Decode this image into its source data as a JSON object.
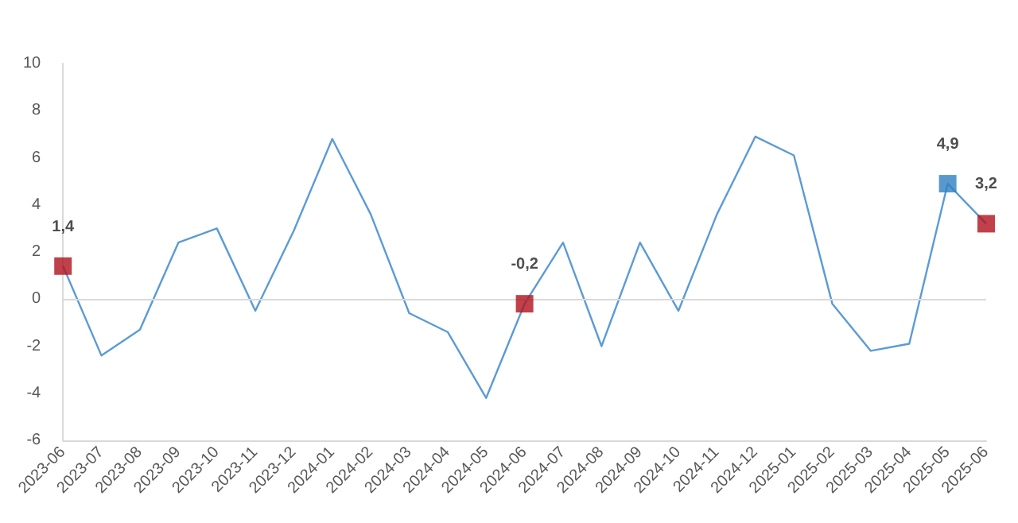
{
  "chart_data": {
    "type": "line",
    "categories": [
      "2023-06",
      "2023-07",
      "2023-08",
      "2023-09",
      "2023-10",
      "2023-11",
      "2023-12",
      "2024-01",
      "2024-02",
      "2024-03",
      "2024-04",
      "2024-05",
      "2024-06",
      "2024-07",
      "2024-08",
      "2024-09",
      "2024-10",
      "2024-11",
      "2024-12",
      "2025-01",
      "2025-02",
      "2025-03",
      "2025-04",
      "2025-05",
      "2025-06"
    ],
    "series": [
      {
        "color": "#5b9bd5",
        "marker": "none",
        "values": [
          1.4,
          -2.4,
          -1.3,
          2.4,
          3.0,
          -0.5,
          2.9,
          6.8,
          3.6,
          -0.6,
          -1.4,
          -4.2,
          -0.2,
          2.4,
          -2.0,
          2.4,
          -0.5,
          3.6,
          6.9,
          6.1,
          -0.2,
          -2.2,
          -1.9,
          4.9,
          3.2
        ]
      },
      {
        "type": "scatter",
        "marker": "square",
        "values": [
          1.4,
          null,
          null,
          null,
          null,
          null,
          null,
          null,
          null,
          null,
          null,
          null,
          -0.2,
          null,
          null,
          null,
          null,
          null,
          null,
          null,
          null,
          null,
          null,
          4.9,
          3.2
        ],
        "colors": [
          "#b0121b",
          null,
          null,
          null,
          null,
          null,
          null,
          null,
          null,
          null,
          null,
          null,
          "#b0121b",
          null,
          null,
          null,
          null,
          null,
          null,
          null,
          null,
          null,
          null,
          "#2e7fc0",
          "#b0121b"
        ],
        "value_labels": [
          "1,4",
          null,
          null,
          null,
          null,
          null,
          null,
          null,
          null,
          null,
          null,
          null,
          "-0,2",
          null,
          null,
          null,
          null,
          null,
          null,
          null,
          null,
          null,
          null,
          "4,9",
          "3,2"
        ]
      }
    ],
    "ylim": [
      -6,
      10
    ],
    "yticks": [
      -6,
      -4,
      -2,
      0,
      2,
      4,
      6,
      8,
      10
    ],
    "grid": false,
    "line_style": "solid",
    "ref_lines": [
      {
        "axis": "y",
        "value": 0,
        "color": "#d9d9d9"
      }
    ]
  }
}
